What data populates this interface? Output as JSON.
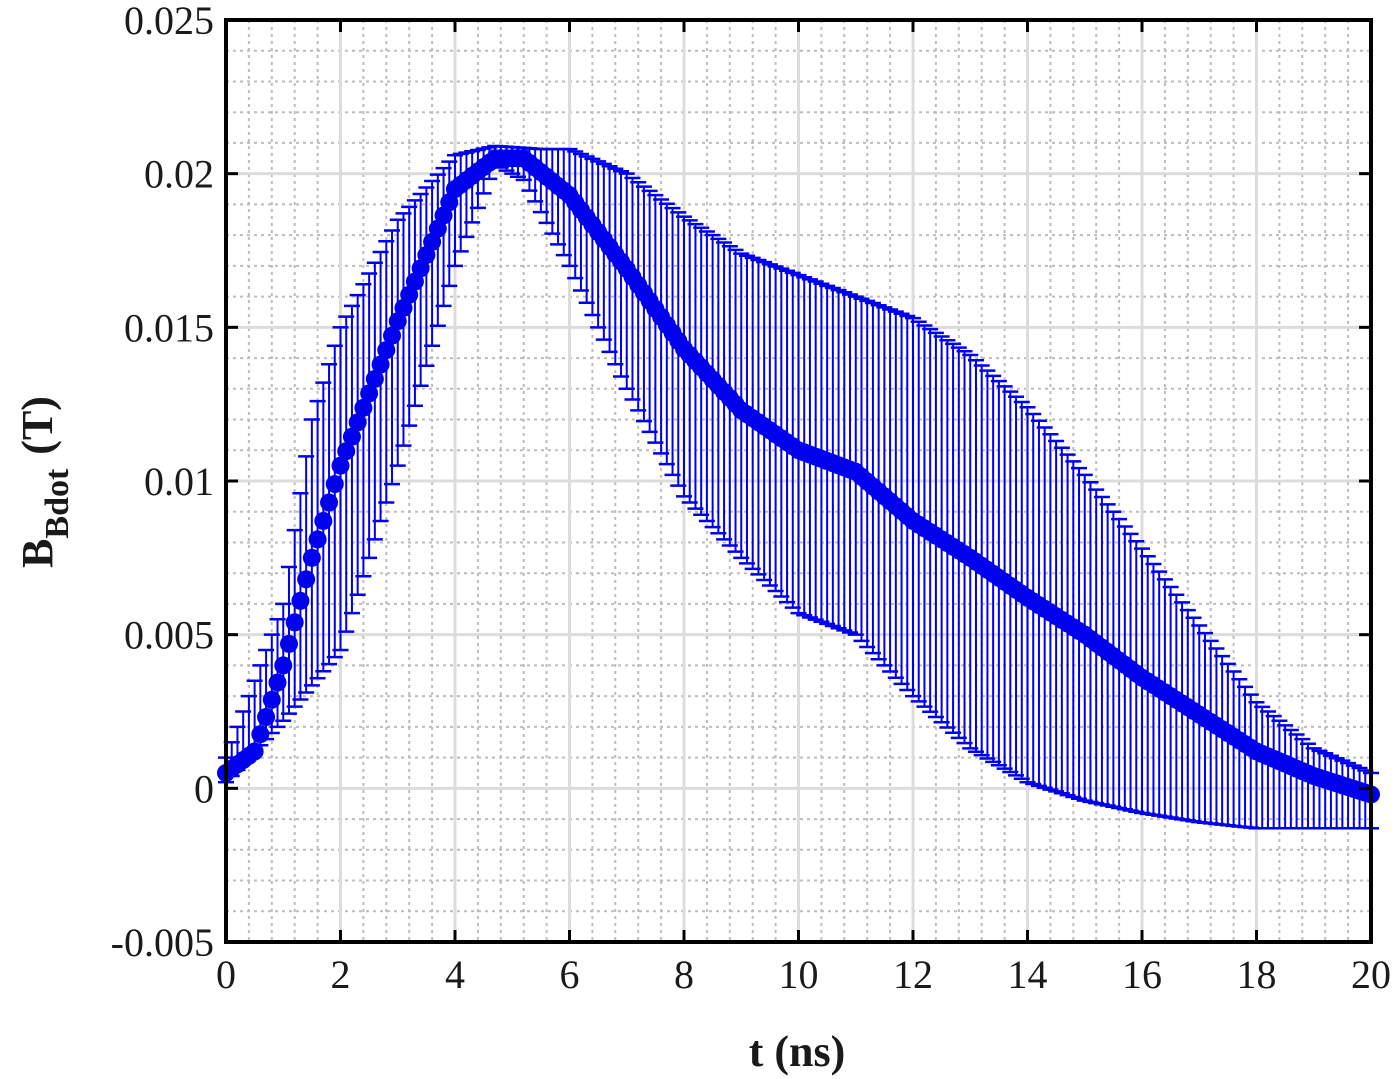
{
  "chart_data": {
    "type": "scatter",
    "style": "errorbar",
    "xlabel": "t (ns)",
    "ylabel_main": "B",
    "ylabel_sub": "Bdot",
    "ylabel_unit": "(T)",
    "xlim": [
      0,
      20
    ],
    "ylim": [
      -0.005,
      0.025
    ],
    "x_ticks": [
      0,
      2,
      4,
      6,
      8,
      10,
      12,
      14,
      16,
      18,
      20
    ],
    "x_tick_labels": [
      "0",
      "2",
      "4",
      "6",
      "8",
      "10",
      "12",
      "14",
      "16",
      "18",
      "20"
    ],
    "y_ticks": [
      -0.005,
      0,
      0.005,
      0.01,
      0.015,
      0.02,
      0.025
    ],
    "y_tick_labels": [
      "-0.005",
      "0",
      "0.005",
      "0.01",
      "0.015",
      "0.02",
      "0.025"
    ],
    "grid": "major-and-minor",
    "series_color": "#0000ee",
    "x_range": [
      0,
      20
    ],
    "x_step": 0.1,
    "mean_knots": [
      [
        0,
        0.0005
      ],
      [
        0.5,
        0.0012
      ],
      [
        1.0,
        0.004
      ],
      [
        1.5,
        0.0075
      ],
      [
        2,
        0.0105
      ],
      [
        3,
        0.0152
      ],
      [
        4,
        0.0195
      ],
      [
        4.7,
        0.0205
      ],
      [
        5.2,
        0.0205
      ],
      [
        6,
        0.0193
      ],
      [
        7,
        0.0169
      ],
      [
        8,
        0.0143
      ],
      [
        9,
        0.0123
      ],
      [
        10,
        0.011
      ],
      [
        11,
        0.0103
      ],
      [
        12,
        0.0087
      ],
      [
        13,
        0.0075
      ],
      [
        14,
        0.0062
      ],
      [
        15,
        0.005
      ],
      [
        16,
        0.0036
      ],
      [
        17,
        0.0024
      ],
      [
        18,
        0.0012
      ],
      [
        19,
        0.0004
      ],
      [
        20,
        -0.0002
      ]
    ],
    "lower_knots": [
      [
        0,
        0.0002
      ],
      [
        1,
        0.0022
      ],
      [
        2,
        0.0045
      ],
      [
        3,
        0.0105
      ],
      [
        4,
        0.017
      ],
      [
        4.7,
        0.0203
      ],
      [
        5.2,
        0.0198
      ],
      [
        6,
        0.017
      ],
      [
        7,
        0.013
      ],
      [
        8,
        0.0095
      ],
      [
        9,
        0.0075
      ],
      [
        10,
        0.0057
      ],
      [
        11,
        0.005
      ],
      [
        12,
        0.003
      ],
      [
        13,
        0.0013
      ],
      [
        14,
        0.0002
      ],
      [
        15,
        -0.0004
      ],
      [
        16,
        -0.0008
      ],
      [
        17,
        -0.0011
      ],
      [
        18,
        -0.0013
      ],
      [
        19,
        -0.0013
      ],
      [
        20,
        -0.0013
      ]
    ],
    "upper_knots": [
      [
        0,
        0.001
      ],
      [
        1,
        0.006
      ],
      [
        1.5,
        0.012
      ],
      [
        2,
        0.015
      ],
      [
        3,
        0.0185
      ],
      [
        4,
        0.0206
      ],
      [
        4.7,
        0.0209
      ],
      [
        5.5,
        0.0208
      ],
      [
        6,
        0.0208
      ],
      [
        7,
        0.02
      ],
      [
        8,
        0.0186
      ],
      [
        9,
        0.0174
      ],
      [
        10,
        0.0167
      ],
      [
        11,
        0.016
      ],
      [
        12,
        0.0153
      ],
      [
        13,
        0.0141
      ],
      [
        14,
        0.0124
      ],
      [
        15,
        0.0102
      ],
      [
        16,
        0.0078
      ],
      [
        17,
        0.0053
      ],
      [
        18,
        0.0028
      ],
      [
        19,
        0.0013
      ],
      [
        20,
        0.0005
      ]
    ]
  }
}
